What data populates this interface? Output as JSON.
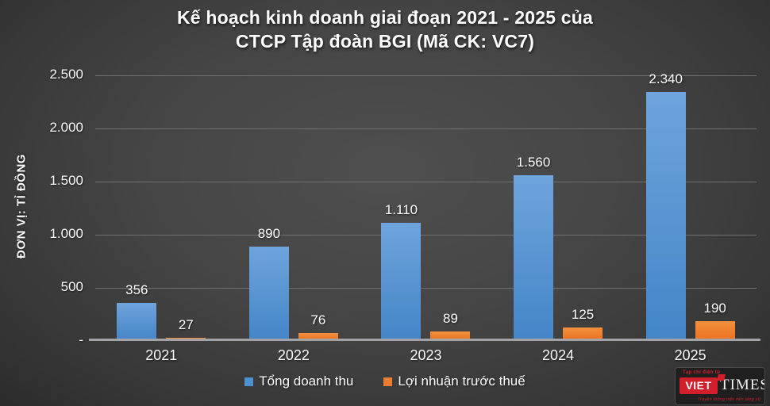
{
  "title": {
    "line1": "Kế hoạch kinh doanh giai đoạn 2021 - 2025 của",
    "line2": "CTCP Tập đoàn BGI (Mã CK: VC7)"
  },
  "y_axis": {
    "unit_label": "ĐƠN VỊ: TỈ ĐỒNG",
    "ticks": [
      "2.500",
      "2.000",
      "1.500",
      "1.000",
      "500",
      "-"
    ]
  },
  "legend": [
    {
      "label": "Tổng doanh thu",
      "color": "#4e91d0"
    },
    {
      "label": "Lợi nhuận trước thuế",
      "color": "#ed7d2f"
    }
  ],
  "chart_data": {
    "type": "bar",
    "title": "Kế hoạch kinh doanh giai đoạn 2021 - 2025 của CTCP Tập đoàn BGI (Mã CK: VC7)",
    "ylabel": "ĐƠN VỊ: TỈ ĐỒNG",
    "ylim": [
      0,
      2500
    ],
    "grid": true,
    "legend_position": "bottom",
    "categories": [
      "2021",
      "2022",
      "2023",
      "2024",
      "2025"
    ],
    "series": [
      {
        "name": "Tổng doanh thu",
        "values": [
          356,
          890,
          1110,
          1560,
          2340
        ],
        "labels": [
          "356",
          "890",
          "1.110",
          "1.560",
          "2.340"
        ],
        "color_top": "#6fa4dc",
        "color_bottom": "#4385c7"
      },
      {
        "name": "Lợi nhuận trước thuế",
        "values": [
          27,
          76,
          89,
          125,
          190
        ],
        "labels": [
          "27",
          "76",
          "89",
          "125",
          "190"
        ],
        "color_top": "#f3903d",
        "color_bottom": "#ea701f"
      }
    ]
  },
  "logo": {
    "top_text": "Tạp chí điện tử",
    "brand_left": "VIET",
    "brand_right": "TIMES",
    "bottom_text": "Truyền thông trên nền tảng số",
    "accent_color": "#d21f2b"
  }
}
